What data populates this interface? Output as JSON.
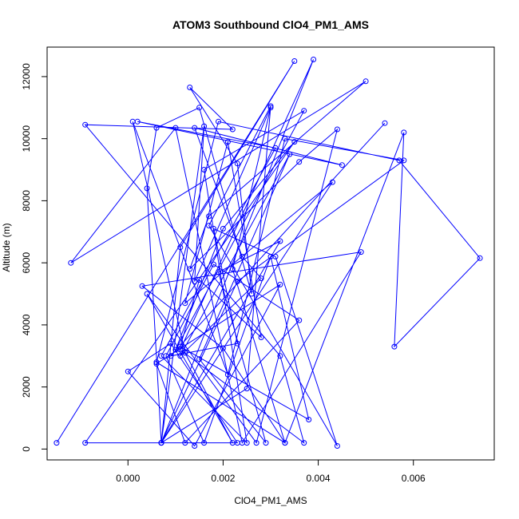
{
  "chart_data": {
    "type": "scatter",
    "title": "ATOM3 Southbound ClO4_PM1_AMS",
    "xlabel": "ClO4_PM1_AMS",
    "ylabel": "Altitude (m)",
    "xlim": [
      -0.0017,
      0.0077
    ],
    "ylim": [
      -350,
      12950
    ],
    "xticks": [
      0.0,
      0.002,
      0.004,
      0.006
    ],
    "xtick_labels": [
      "0.000",
      "0.002",
      "0.004",
      "0.006"
    ],
    "yticks": [
      0,
      2000,
      4000,
      6000,
      8000,
      10000,
      12000
    ],
    "ytick_labels": [
      "0",
      "2000",
      "4000",
      "6000",
      "8000",
      "10000",
      "12000"
    ],
    "grid": false,
    "legend": "none",
    "connect_points": true,
    "marker": "open-circle",
    "color": "#0000ff",
    "series": [
      {
        "x": [
          -0.0015,
          0.0035,
          0.0011,
          0.0007,
          0.0004,
          0.0006,
          0.0015,
          0.0026,
          0.0023,
          0.0013,
          0.0022,
          -0.0009,
          0.0032,
          0.0037,
          0.0011,
          0.0039,
          0.0007,
          0.0016,
          0.0014,
          0.003,
          0.0022,
          0.0033,
          0.0006,
          0.0019,
          0.0057,
          0.0074,
          0.0056,
          0.0058,
          0.0033,
          0.002,
          0.0003,
          0.0049,
          0.0024,
          0.001,
          -0.0012,
          0.005,
          0.0017,
          0.0013,
          0.0036,
          0.0044,
          0.0027,
          0.0004,
          0.0022,
          0.0012,
          0.0001,
          0.0021,
          0.0033,
          0.0058,
          0.0023,
          0.0007,
          0.0043,
          0.0012,
          0.0021,
          0.0028,
          0.0015,
          0.0011,
          0.0038,
          0.003,
          0.0016,
          0.0008,
          0.0018,
          0.0036,
          0.0012,
          0.0006,
          0.0032,
          0.0014,
          0.0,
          0.0009,
          0.0023,
          -0.0009,
          0.0035,
          0.002,
          0.001,
          0.0037,
          0.0016,
          0.0025,
          0.0007,
          0.0031,
          0.0002,
          0.0045,
          0.0014,
          0.0024,
          0.0028,
          0.0011,
          0.0034,
          0.0015,
          0.0029,
          0.0019,
          0.0032,
          0.0007,
          0.0025,
          0.003,
          0.0017,
          0.0044,
          0.0031,
          0.0018,
          0.0023,
          0.0009,
          0.0054
        ],
        "y": [
          200,
          12500,
          6500,
          200,
          8400,
          10350,
          11000,
          5000,
          9200,
          11650,
          10300,
          10450,
          3000,
          200,
          3200,
          12550,
          200,
          10400,
          5400,
          11000,
          5800,
          200,
          2800,
          10550,
          9300,
          6150,
          3300,
          10200,
          200,
          3250,
          5250,
          6350,
          200,
          10350,
          6000,
          11850,
          7500,
          5800,
          9250,
          10300,
          200,
          5000,
          200,
          3100,
          10550,
          2400,
          10000,
          9300,
          5400,
          200,
          8600,
          4700,
          9900,
          3600,
          5450,
          3300,
          950,
          6200,
          200,
          3000,
          5950,
          4150,
          200,
          2750,
          5300,
          100,
          2500,
          3400,
          200,
          200,
          9900,
          7100,
          3200,
          10900,
          9000,
          200,
          3000,
          9700,
          10550,
          9150,
          10350,
          6200,
          5500,
          3000,
          9500,
          2900,
          200,
          5700,
          6700,
          200,
          1950,
          11050,
          7200,
          100,
          6200,
          7100,
          3400,
          3000,
          10500
        ]
      }
    ]
  }
}
